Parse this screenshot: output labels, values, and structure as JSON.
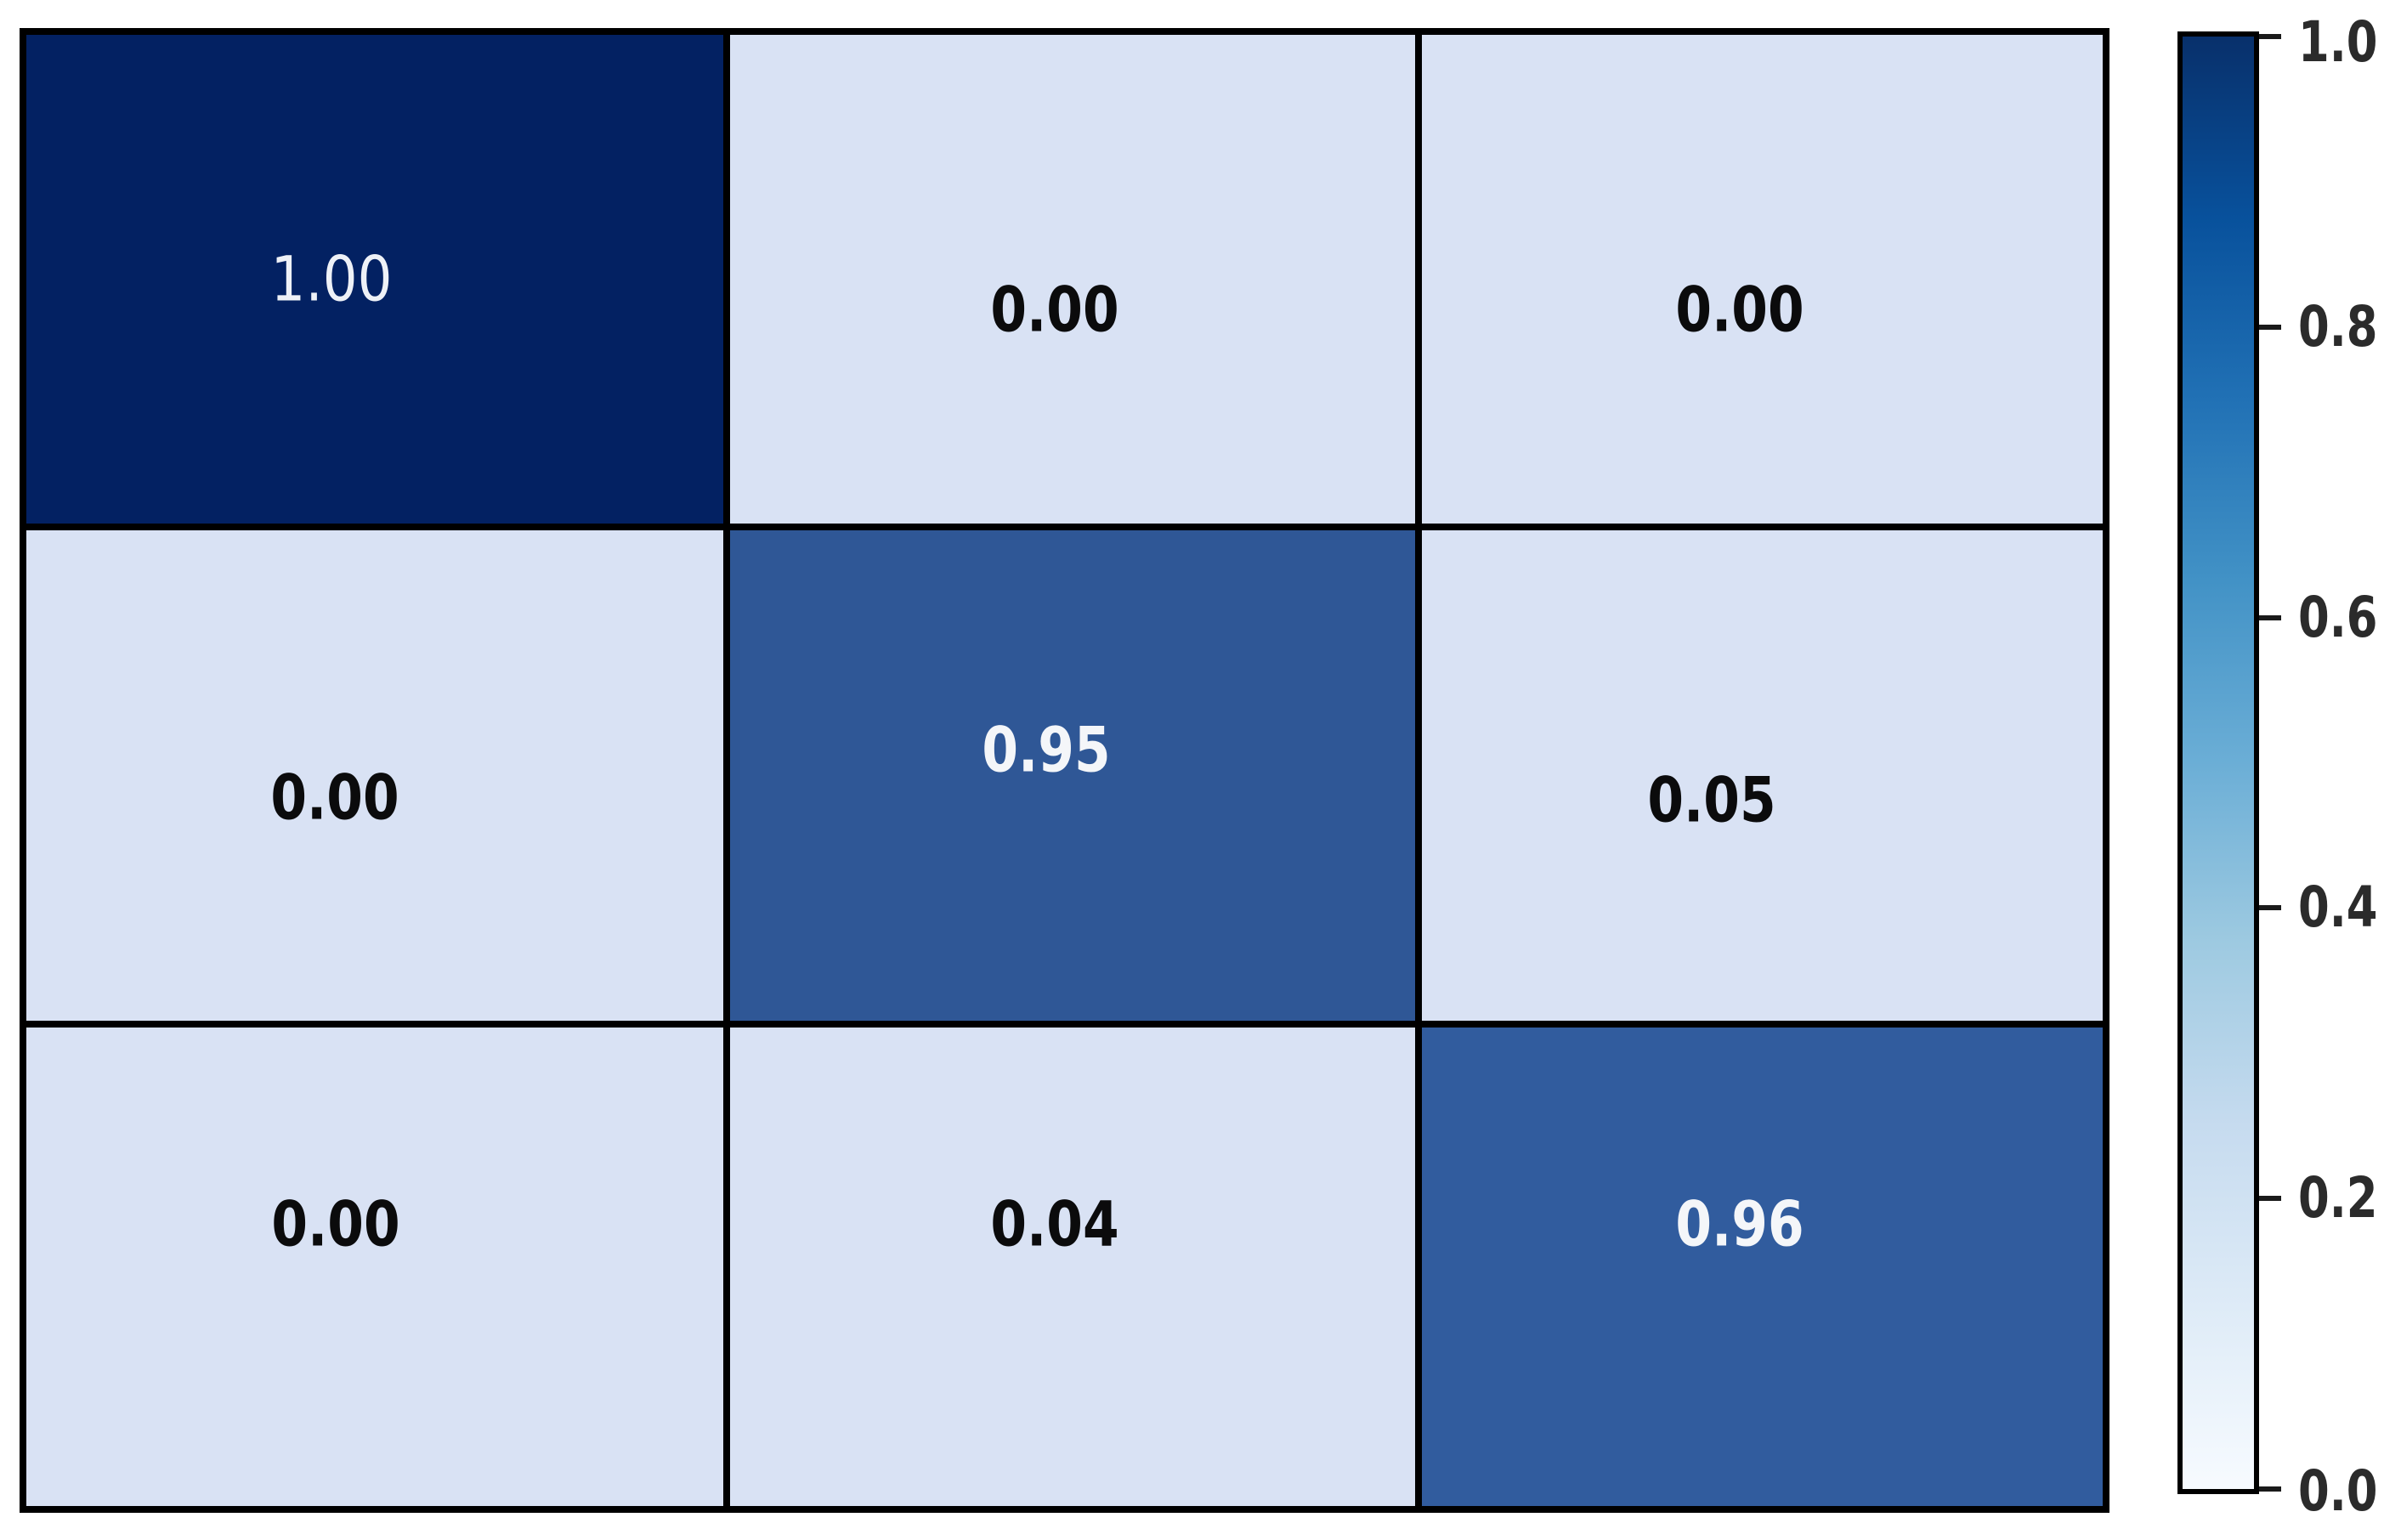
{
  "chart_data": {
    "type": "heatmap",
    "description": "3x3 normalized confusion-matrix style heatmap with Blues colorbar",
    "rows": 3,
    "cols": 3,
    "matrix": [
      [
        1.0,
        0.0,
        0.0
      ],
      [
        0.0,
        0.95,
        0.05
      ],
      [
        0.0,
        0.04,
        0.96
      ]
    ],
    "cells": [
      {
        "row": 0,
        "col": 0,
        "label": "1.00",
        "bg": "#032162",
        "fg": "#eef1f7"
      },
      {
        "row": 0,
        "col": 1,
        "label": "0.00",
        "bg": "#d9e2f4",
        "fg": "#0b0b0c"
      },
      {
        "row": 0,
        "col": 2,
        "label": "0.00",
        "bg": "#d9e2f4",
        "fg": "#0b0b0c"
      },
      {
        "row": 1,
        "col": 0,
        "label": "0.00",
        "bg": "#d9e2f4",
        "fg": "#0b0b0c"
      },
      {
        "row": 1,
        "col": 1,
        "label": "0.95",
        "bg": "#2f5796",
        "fg": "#f4f6f9"
      },
      {
        "row": 1,
        "col": 2,
        "label": "0.05",
        "bg": "#d9e2f4",
        "fg": "#0b0b0c"
      },
      {
        "row": 2,
        "col": 0,
        "label": "0.00",
        "bg": "#d9e2f4",
        "fg": "#0b0b0c"
      },
      {
        "row": 2,
        "col": 1,
        "label": "0.04",
        "bg": "#d9e2f4",
        "fg": "#0b0b0c"
      },
      {
        "row": 2,
        "col": 2,
        "label": "0.96",
        "bg": "#315c9e",
        "fg": "#f4f6f9"
      }
    ],
    "grid_line_color": "#000000",
    "background_color": "#ffffff",
    "colorbar": {
      "orientation": "vertical",
      "range": [
        0.0,
        1.0
      ],
      "ticks": [
        "1.0",
        "0.8",
        "0.6",
        "0.4",
        "0.2",
        "0.0"
      ],
      "colormap": "Blues",
      "gradient_stops": [
        {
          "pos": "0%",
          "color": "#08306b"
        },
        {
          "pos": "12.5%",
          "color": "#08519c"
        },
        {
          "pos": "25%",
          "color": "#2171b5"
        },
        {
          "pos": "37.5%",
          "color": "#4292c6"
        },
        {
          "pos": "50%",
          "color": "#6baed6"
        },
        {
          "pos": "62.5%",
          "color": "#9ecae1"
        },
        {
          "pos": "75%",
          "color": "#c6dbef"
        },
        {
          "pos": "87.5%",
          "color": "#deebf7"
        },
        {
          "pos": "100%",
          "color": "#f7fbff"
        }
      ],
      "outline_color": "#000000",
      "tick_color": "#1a1a1a",
      "tick_label_color": "#2b2b2b"
    },
    "legend_position": "right",
    "axes_visible": false
  }
}
